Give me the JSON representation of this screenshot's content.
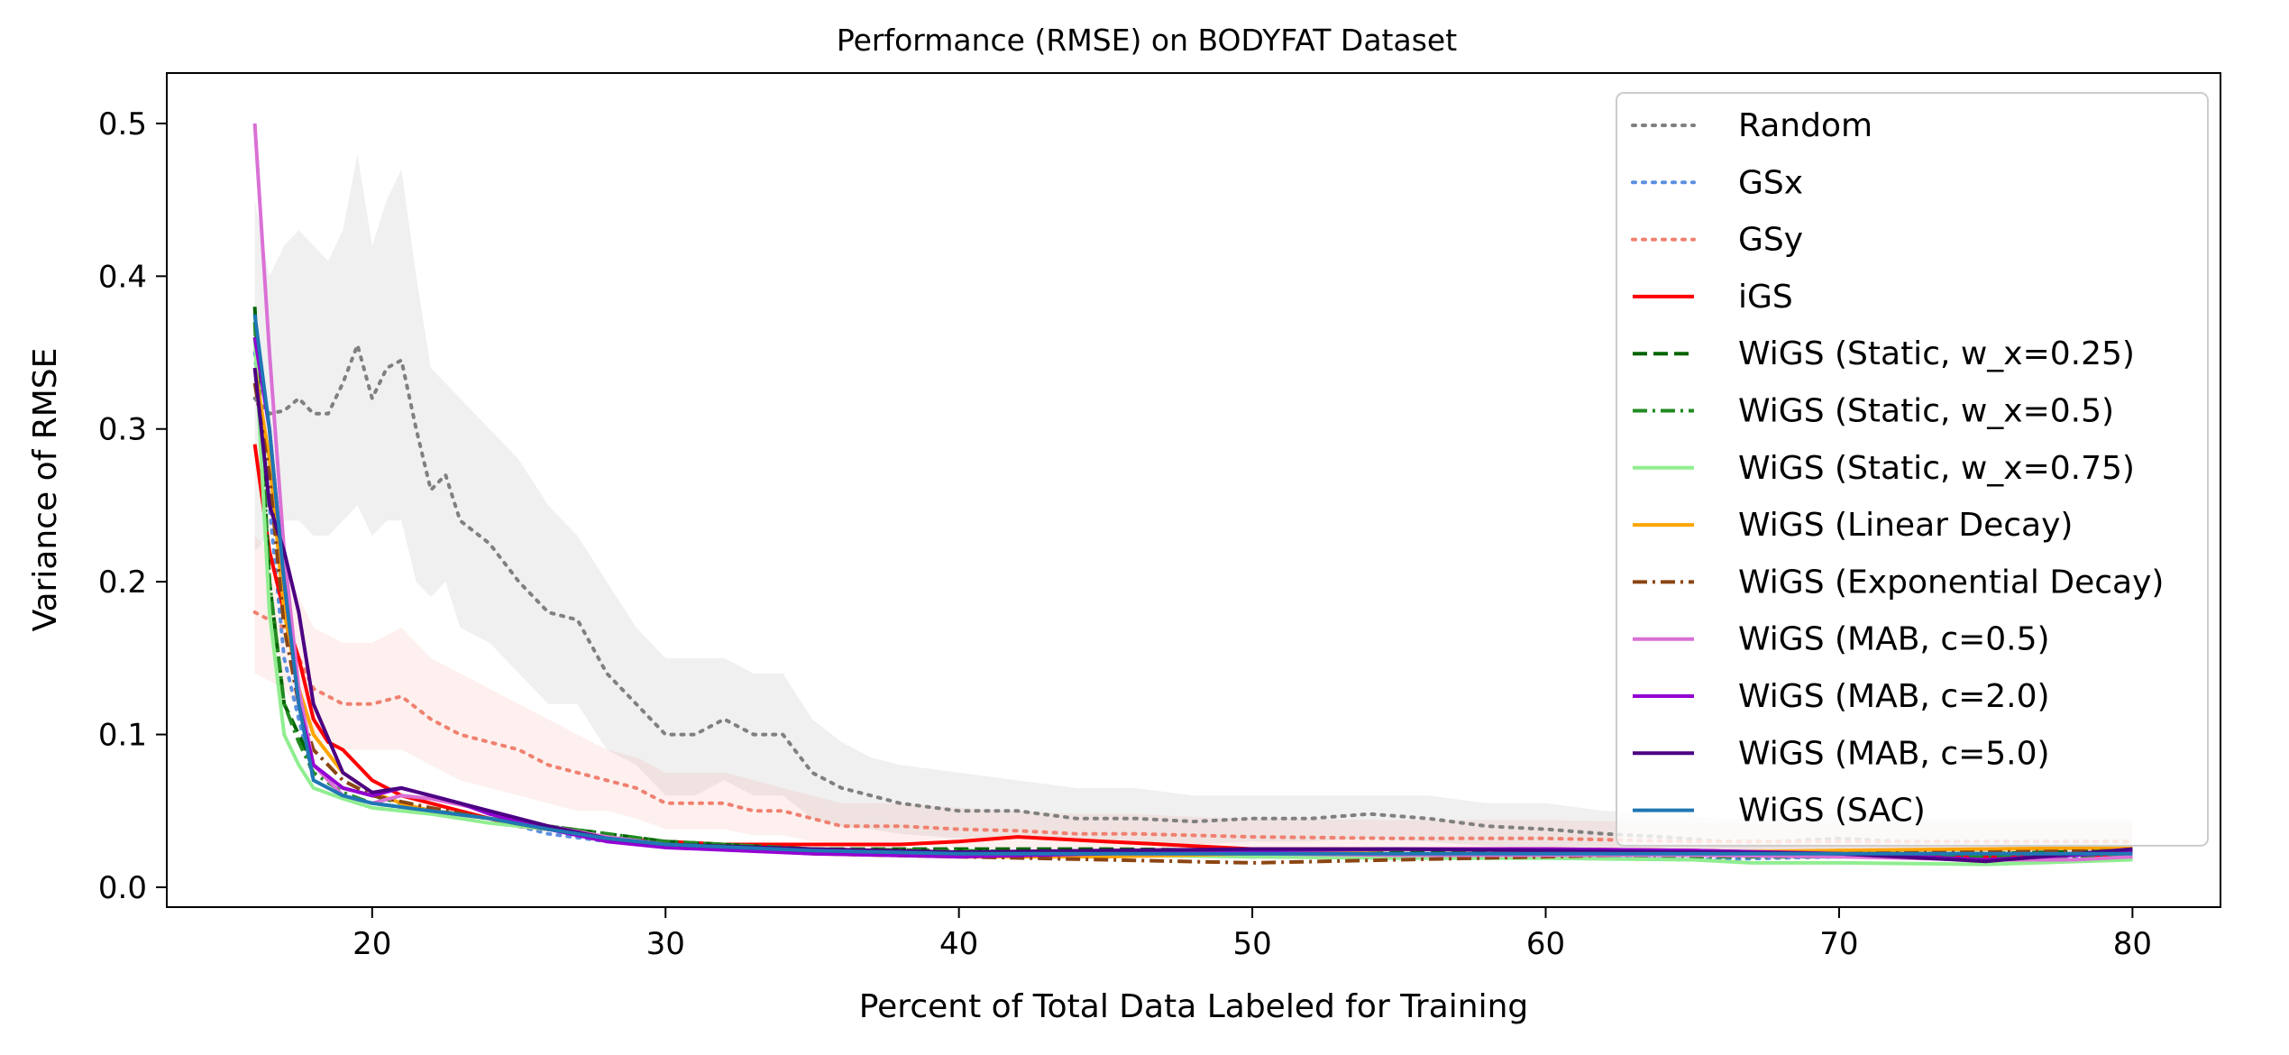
{
  "chart_data": {
    "type": "line",
    "title": "Performance (RMSE) on BODYFAT Dataset",
    "xlabel": "Percent of Total Data Labeled for Training",
    "ylabel": "Variance of RMSE",
    "xlim": [
      13,
      83
    ],
    "ylim": [
      -0.013,
      0.533
    ],
    "xticks": [
      20,
      30,
      40,
      50,
      60,
      70,
      80
    ],
    "yticks": [
      0.0,
      0.1,
      0.2,
      0.3,
      0.4,
      0.5
    ],
    "xtick_labels": [
      "20",
      "30",
      "40",
      "50",
      "60",
      "70",
      "80"
    ],
    "ytick_labels": [
      "0.0",
      "0.1",
      "0.2",
      "0.3",
      "0.4",
      "0.5"
    ],
    "grid": false,
    "legend_position": "upper-right",
    "series": [
      {
        "name": "Random",
        "color": "#808080",
        "style": "dotted",
        "x": [
          16,
          16.5,
          17,
          17.5,
          18,
          18.5,
          19,
          19.5,
          20,
          20.5,
          21,
          21.5,
          22,
          22.5,
          23,
          24,
          25,
          26,
          27,
          28,
          29,
          30,
          31,
          32,
          33,
          34,
          35,
          36,
          37,
          38,
          40,
          42,
          44,
          46,
          48,
          50,
          52,
          54,
          56,
          58,
          60,
          62,
          64,
          66,
          68,
          70,
          72,
          74,
          76,
          78,
          80
        ],
        "y": [
          0.32,
          0.31,
          0.312,
          0.32,
          0.31,
          0.31,
          0.33,
          0.355,
          0.32,
          0.34,
          0.345,
          0.3,
          0.26,
          0.27,
          0.24,
          0.225,
          0.2,
          0.18,
          0.175,
          0.14,
          0.12,
          0.1,
          0.1,
          0.11,
          0.1,
          0.1,
          0.075,
          0.065,
          0.06,
          0.055,
          0.05,
          0.05,
          0.045,
          0.045,
          0.043,
          0.045,
          0.045,
          0.048,
          0.045,
          0.04,
          0.038,
          0.035,
          0.033,
          0.03,
          0.03,
          0.032,
          0.03,
          0.03,
          0.03,
          0.03,
          0.03
        ],
        "band_upper": [
          0.45,
          0.4,
          0.42,
          0.43,
          0.42,
          0.41,
          0.43,
          0.48,
          0.42,
          0.45,
          0.47,
          0.4,
          0.34,
          0.33,
          0.32,
          0.3,
          0.28,
          0.25,
          0.23,
          0.2,
          0.17,
          0.15,
          0.15,
          0.15,
          0.14,
          0.14,
          0.11,
          0.095,
          0.085,
          0.08,
          0.075,
          0.07,
          0.065,
          0.065,
          0.06,
          0.06,
          0.06,
          0.06,
          0.06,
          0.055,
          0.055,
          0.05,
          0.048,
          0.045,
          0.045,
          0.048,
          0.045,
          0.045,
          0.045,
          0.045,
          0.045
        ],
        "band_lower": [
          0.22,
          0.23,
          0.24,
          0.24,
          0.23,
          0.23,
          0.24,
          0.25,
          0.23,
          0.24,
          0.24,
          0.2,
          0.19,
          0.2,
          0.17,
          0.16,
          0.14,
          0.12,
          0.12,
          0.09,
          0.08,
          0.06,
          0.06,
          0.07,
          0.06,
          0.06,
          0.045,
          0.04,
          0.038,
          0.035,
          0.032,
          0.032,
          0.03,
          0.03,
          0.028,
          0.03,
          0.03,
          0.032,
          0.03,
          0.027,
          0.025,
          0.022,
          0.02,
          0.018,
          0.018,
          0.02,
          0.018,
          0.018,
          0.018,
          0.018,
          0.018
        ]
      },
      {
        "name": "GSx",
        "color": "#5b8fe0",
        "style": "dotted",
        "x": [
          16,
          17,
          18,
          19,
          20,
          22,
          24,
          26,
          28,
          30,
          35,
          40,
          45,
          50,
          55,
          60,
          65,
          70,
          75,
          80
        ],
        "y": [
          0.35,
          0.15,
          0.07,
          0.06,
          0.055,
          0.05,
          0.045,
          0.035,
          0.03,
          0.028,
          0.025,
          0.022,
          0.022,
          0.022,
          0.022,
          0.02,
          0.018,
          0.02,
          0.02,
          0.02
        ]
      },
      {
        "name": "GSy",
        "color": "#f08070",
        "style": "dotted",
        "x": [
          16,
          17,
          18,
          19,
          20,
          21,
          22,
          23,
          24,
          25,
          26,
          27,
          28,
          29,
          30,
          31,
          32,
          33,
          34,
          35,
          36,
          38,
          40,
          42,
          44,
          46,
          48,
          50,
          55,
          60,
          65,
          70,
          75,
          80
        ],
        "y": [
          0.18,
          0.17,
          0.13,
          0.12,
          0.12,
          0.125,
          0.11,
          0.1,
          0.095,
          0.09,
          0.08,
          0.075,
          0.07,
          0.065,
          0.055,
          0.055,
          0.055,
          0.05,
          0.05,
          0.045,
          0.04,
          0.04,
          0.038,
          0.037,
          0.035,
          0.035,
          0.034,
          0.033,
          0.032,
          0.032,
          0.03,
          0.03,
          0.03,
          0.03
        ],
        "band_upper": [
          0.23,
          0.21,
          0.17,
          0.16,
          0.16,
          0.17,
          0.15,
          0.14,
          0.13,
          0.12,
          0.11,
          0.1,
          0.09,
          0.085,
          0.075,
          0.075,
          0.075,
          0.07,
          0.065,
          0.06,
          0.055,
          0.055,
          0.052,
          0.05,
          0.048,
          0.048,
          0.046,
          0.045,
          0.044,
          0.044,
          0.042,
          0.042,
          0.042,
          0.042
        ],
        "band_lower": [
          0.14,
          0.13,
          0.1,
          0.09,
          0.09,
          0.09,
          0.08,
          0.07,
          0.065,
          0.06,
          0.055,
          0.05,
          0.05,
          0.045,
          0.038,
          0.038,
          0.038,
          0.034,
          0.034,
          0.03,
          0.028,
          0.028,
          0.026,
          0.025,
          0.024,
          0.024,
          0.023,
          0.022,
          0.022,
          0.022,
          0.02,
          0.02,
          0.02,
          0.02
        ]
      },
      {
        "name": "iGS",
        "color": "#ff0000",
        "style": "solid",
        "x": [
          16,
          16.5,
          17,
          17.5,
          18,
          18.5,
          19,
          19.5,
          20,
          21,
          22,
          23,
          24,
          25,
          26,
          27,
          28,
          30,
          32,
          35,
          38,
          40,
          42,
          45,
          48,
          50,
          55,
          60,
          65,
          70,
          75,
          78,
          80
        ],
        "y": [
          0.29,
          0.22,
          0.18,
          0.15,
          0.11,
          0.095,
          0.09,
          0.08,
          0.07,
          0.06,
          0.055,
          0.05,
          0.045,
          0.04,
          0.038,
          0.035,
          0.032,
          0.03,
          0.028,
          0.028,
          0.028,
          0.03,
          0.033,
          0.03,
          0.027,
          0.025,
          0.025,
          0.025,
          0.024,
          0.022,
          0.02,
          0.022,
          0.019
        ]
      },
      {
        "name": "WiGS (Static, w_x=0.25)",
        "color": "#006400",
        "style": "dashed",
        "x": [
          16,
          16.5,
          17,
          17.5,
          18,
          19,
          20,
          21,
          22,
          23,
          24,
          26,
          28,
          30,
          35,
          40,
          45,
          50,
          55,
          60,
          65,
          70,
          75,
          80
        ],
        "y": [
          0.38,
          0.2,
          0.12,
          0.1,
          0.08,
          0.065,
          0.06,
          0.055,
          0.05,
          0.048,
          0.045,
          0.04,
          0.035,
          0.03,
          0.025,
          0.025,
          0.025,
          0.024,
          0.023,
          0.023,
          0.023,
          0.022,
          0.022,
          0.024
        ]
      },
      {
        "name": "WiGS (Static, w_x=0.5)",
        "color": "#228b22",
        "style": "dashdot",
        "x": [
          16,
          16.5,
          17,
          17.5,
          18,
          19,
          20,
          22,
          24,
          26,
          28,
          30,
          35,
          40,
          45,
          50,
          55,
          60,
          65,
          70,
          75,
          80
        ],
        "y": [
          0.37,
          0.2,
          0.12,
          0.095,
          0.075,
          0.062,
          0.055,
          0.05,
          0.045,
          0.04,
          0.035,
          0.03,
          0.025,
          0.024,
          0.022,
          0.02,
          0.02,
          0.02,
          0.02,
          0.02,
          0.02,
          0.02
        ]
      },
      {
        "name": "WiGS (Static, w_x=0.75)",
        "color": "#90ee90",
        "style": "solid",
        "x": [
          16,
          16.5,
          17,
          17.5,
          18,
          19,
          20,
          22,
          24,
          26,
          28,
          30,
          35,
          40,
          45,
          50,
          55,
          60,
          65,
          67,
          70,
          75,
          80
        ],
        "y": [
          0.36,
          0.18,
          0.1,
          0.08,
          0.065,
          0.058,
          0.052,
          0.048,
          0.042,
          0.038,
          0.033,
          0.028,
          0.024,
          0.022,
          0.021,
          0.02,
          0.019,
          0.019,
          0.018,
          0.016,
          0.016,
          0.015,
          0.018
        ]
      },
      {
        "name": "WiGS (Linear Decay)",
        "color": "#ffa500",
        "style": "solid",
        "x": [
          16,
          16.5,
          17,
          17.5,
          18,
          19,
          20,
          21,
          22,
          24,
          26,
          28,
          30,
          35,
          40,
          45,
          50,
          55,
          60,
          65,
          70,
          75,
          80
        ],
        "y": [
          0.34,
          0.28,
          0.18,
          0.13,
          0.1,
          0.075,
          0.062,
          0.055,
          0.05,
          0.045,
          0.038,
          0.032,
          0.028,
          0.022,
          0.02,
          0.02,
          0.022,
          0.025,
          0.024,
          0.023,
          0.024,
          0.025,
          0.026
        ]
      },
      {
        "name": "WiGS (Exponential Decay)",
        "color": "#8b4513",
        "style": "dashdot",
        "x": [
          16,
          16.5,
          17,
          17.5,
          18,
          19,
          20,
          22,
          24,
          26,
          28,
          30,
          35,
          40,
          45,
          50,
          55,
          60,
          65,
          70,
          75,
          80
        ],
        "y": [
          0.33,
          0.27,
          0.17,
          0.12,
          0.09,
          0.07,
          0.06,
          0.052,
          0.045,
          0.038,
          0.032,
          0.027,
          0.022,
          0.02,
          0.018,
          0.016,
          0.018,
          0.02,
          0.022,
          0.022,
          0.023,
          0.024
        ]
      },
      {
        "name": "WiGS (MAB, c=0.5)",
        "color": "#da70d6",
        "style": "solid",
        "x": [
          16,
          16.5,
          17,
          17.5,
          18,
          19,
          20,
          21,
          22,
          24,
          26,
          28,
          30,
          35,
          40,
          45,
          50,
          55,
          60,
          65,
          70,
          75,
          78,
          80
        ],
        "y": [
          0.5,
          0.35,
          0.22,
          0.13,
          0.08,
          0.06,
          0.055,
          0.06,
          0.058,
          0.05,
          0.04,
          0.033,
          0.028,
          0.024,
          0.022,
          0.022,
          0.022,
          0.021,
          0.021,
          0.021,
          0.02,
          0.018,
          0.018,
          0.02
        ]
      },
      {
        "name": "WiGS (MAB, c=2.0)",
        "color": "#9400d3",
        "style": "solid",
        "x": [
          16,
          16.5,
          17,
          17.5,
          18,
          19,
          20,
          21,
          22,
          23,
          24,
          26,
          28,
          30,
          35,
          40,
          45,
          50,
          55,
          60,
          65,
          70,
          75,
          80
        ],
        "y": [
          0.36,
          0.3,
          0.2,
          0.12,
          0.08,
          0.065,
          0.06,
          0.065,
          0.06,
          0.055,
          0.048,
          0.038,
          0.03,
          0.026,
          0.022,
          0.02,
          0.022,
          0.024,
          0.025,
          0.025,
          0.024,
          0.022,
          0.018,
          0.023
        ]
      },
      {
        "name": "WiGS (MAB, c=5.0)",
        "color": "#4b0082",
        "style": "solid",
        "x": [
          16,
          16.5,
          17,
          17.5,
          18,
          19,
          20,
          21,
          22,
          23,
          24,
          26,
          28,
          30,
          35,
          40,
          45,
          50,
          55,
          60,
          65,
          70,
          75,
          80
        ],
        "y": [
          0.34,
          0.25,
          0.22,
          0.18,
          0.12,
          0.075,
          0.062,
          0.065,
          0.06,
          0.055,
          0.05,
          0.04,
          0.032,
          0.028,
          0.025,
          0.023,
          0.024,
          0.025,
          0.025,
          0.024,
          0.023,
          0.022,
          0.017,
          0.025
        ]
      },
      {
        "name": "WiGS (SAC)",
        "color": "#1f77b4",
        "style": "solid",
        "x": [
          16,
          16.5,
          17,
          17.5,
          18,
          19,
          20,
          22,
          24,
          26,
          28,
          30,
          35,
          40,
          45,
          50,
          55,
          60,
          65,
          70,
          75,
          80
        ],
        "y": [
          0.375,
          0.3,
          0.2,
          0.12,
          0.07,
          0.06,
          0.055,
          0.05,
          0.045,
          0.038,
          0.032,
          0.028,
          0.024,
          0.022,
          0.022,
          0.022,
          0.022,
          0.022,
          0.022,
          0.022,
          0.022,
          0.022
        ]
      }
    ]
  }
}
